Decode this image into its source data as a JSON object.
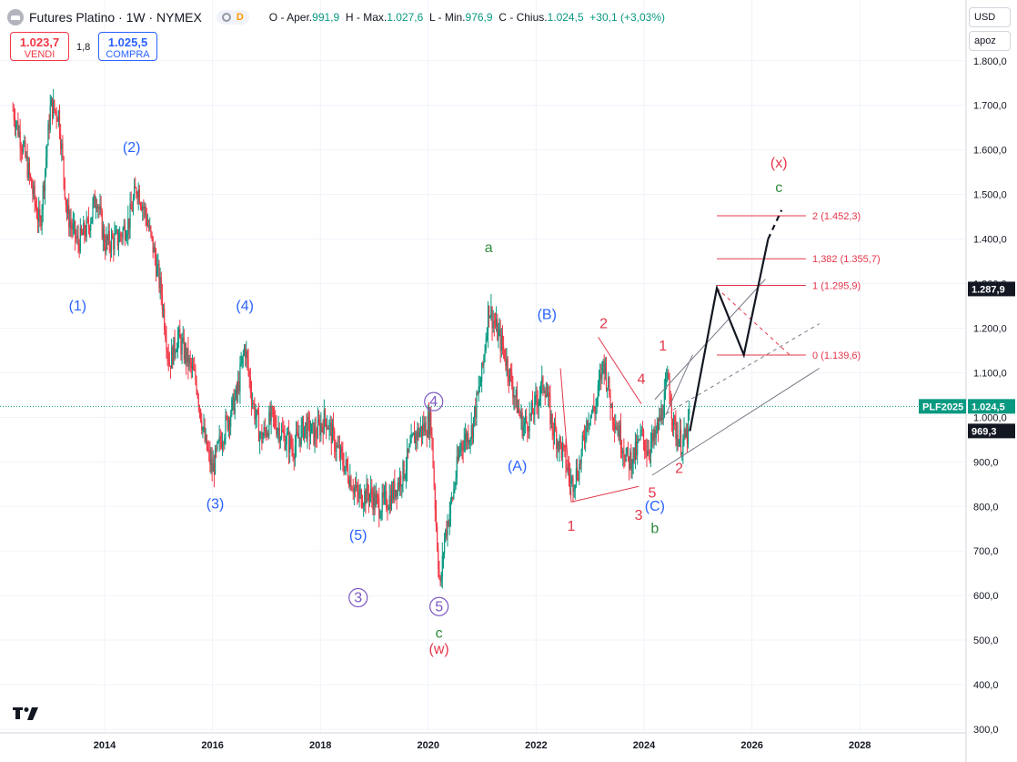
{
  "header": {
    "symbol": "Futures Platino · 1W · NYMEX",
    "pill_d": "D",
    "o_label": "O -",
    "o_key": "Aper.",
    "o_val": "991,9",
    "h_label": "H -",
    "h_key": "Max.",
    "h_val": "1.027,6",
    "l_label": "L -",
    "l_key": "Min.",
    "l_val": "976,9",
    "c_label": "C -",
    "c_key": "Chius.",
    "c_val": "1.024,5",
    "change": "+30,1 (+3,03%)"
  },
  "trade": {
    "sell_price": "1.023,7",
    "sell_label": "VENDI",
    "spread": "1,8",
    "buy_price": "1.025,5",
    "buy_label": "COMPRA"
  },
  "toolbar": {
    "currency": "USD",
    "scale_mode": "apoz"
  },
  "colors": {
    "up": "#089981",
    "down": "#f23645",
    "blue": "#2962ff",
    "green": "#2e8b3a",
    "purple": "#7e57c2",
    "red": "#e5364a",
    "grid": "#f0f3fa"
  },
  "chart_data": {
    "type": "candlestick",
    "symbol": "PLF2025",
    "timeframe": "1W",
    "x_range": [
      2012.3,
      2029.1
    ],
    "y_range": [
      300,
      1850
    ],
    "x_ticks": [
      "2014",
      "2016",
      "2018",
      "2020",
      "2022",
      "2024",
      "2026",
      "2028"
    ],
    "y_ticks": [
      "300,0",
      "400,0",
      "500,0",
      "600,0",
      "700,0",
      "800,0",
      "900,0",
      "1.000,0",
      "1.100,0",
      "1.200,0",
      "1.300,0",
      "1.400,0",
      "1.500,0",
      "1.600,0",
      "1.700,0",
      "1.800,0"
    ],
    "price_path": [
      [
        2012.3,
        1690
      ],
      [
        2012.5,
        1600
      ],
      [
        2012.8,
        1430
      ],
      [
        2013.0,
        1700
      ],
      [
        2013.15,
        1680
      ],
      [
        2013.3,
        1460
      ],
      [
        2013.5,
        1390
      ],
      [
        2013.7,
        1430
      ],
      [
        2013.85,
        1500
      ],
      [
        2014.0,
        1390
      ],
      [
        2014.25,
        1400
      ],
      [
        2014.45,
        1440
      ],
      [
        2014.6,
        1520
      ],
      [
        2014.75,
        1460
      ],
      [
        2014.9,
        1380
      ],
      [
        2015.05,
        1280
      ],
      [
        2015.2,
        1120
      ],
      [
        2015.35,
        1180
      ],
      [
        2015.5,
        1140
      ],
      [
        2015.7,
        1080
      ],
      [
        2015.85,
        950
      ],
      [
        2016.0,
        880
      ],
      [
        2016.15,
        950
      ],
      [
        2016.3,
        1000
      ],
      [
        2016.45,
        1050
      ],
      [
        2016.6,
        1160
      ],
      [
        2016.75,
        1030
      ],
      [
        2016.9,
        950
      ],
      [
        2017.1,
        1000
      ],
      [
        2017.3,
        960
      ],
      [
        2017.5,
        930
      ],
      [
        2017.7,
        980
      ],
      [
        2017.9,
        960
      ],
      [
        2018.1,
        1000
      ],
      [
        2018.3,
        930
      ],
      [
        2018.5,
        880
      ],
      [
        2018.7,
        820
      ],
      [
        2018.9,
        830
      ],
      [
        2019.1,
        800
      ],
      [
        2019.3,
        820
      ],
      [
        2019.55,
        880
      ],
      [
        2019.75,
        960
      ],
      [
        2019.95,
        980
      ],
      [
        2020.05,
        990
      ],
      [
        2020.15,
        750
      ],
      [
        2020.22,
        610
      ],
      [
        2020.3,
        730
      ],
      [
        2020.45,
        820
      ],
      [
        2020.6,
        940
      ],
      [
        2020.8,
        970
      ],
      [
        2021.0,
        1100
      ],
      [
        2021.12,
        1250
      ],
      [
        2021.25,
        1200
      ],
      [
        2021.4,
        1150
      ],
      [
        2021.6,
        1050
      ],
      [
        2021.75,
        980
      ],
      [
        2021.9,
        1000
      ],
      [
        2022.05,
        1050
      ],
      [
        2022.15,
        1080
      ],
      [
        2022.3,
        980
      ],
      [
        2022.5,
        920
      ],
      [
        2022.65,
        850
      ],
      [
        2022.8,
        890
      ],
      [
        2022.95,
        1000
      ],
      [
        2023.1,
        1020
      ],
      [
        2023.25,
        1130
      ],
      [
        2023.4,
        1020
      ],
      [
        2023.55,
        960
      ],
      [
        2023.7,
        900
      ],
      [
        2023.85,
        920
      ],
      [
        2023.95,
        960
      ],
      [
        2024.05,
        930
      ],
      [
        2024.2,
        950
      ],
      [
        2024.35,
        1020
      ],
      [
        2024.45,
        1090
      ],
      [
        2024.55,
        980
      ],
      [
        2024.7,
        940
      ],
      [
        2024.8,
        960
      ],
      [
        2024.85,
        1020
      ]
    ],
    "last_price": "1.024,5",
    "last_label": "PLF2025",
    "labels_on_axis": [
      "1.287,9",
      "969,3"
    ],
    "fibonacci": [
      {
        "label": "2 (1.452,3)",
        "price": 1452.3
      },
      {
        "label": "1,382 (1.355,7)",
        "price": 1355.7
      },
      {
        "label": "1 (1.295,9)",
        "price": 1295.9
      },
      {
        "label": "0 (1.139,6)",
        "price": 1139.6
      }
    ],
    "wave_labels": [
      {
        "text": "(1)",
        "x": 2013.5,
        "y": 1240,
        "color": "blue"
      },
      {
        "text": "(2)",
        "x": 2014.5,
        "y": 1595,
        "color": "blue"
      },
      {
        "text": "(3)",
        "x": 2016.05,
        "y": 795,
        "color": "blue"
      },
      {
        "text": "(4)",
        "x": 2016.6,
        "y": 1240,
        "color": "blue"
      },
      {
        "text": "(5)",
        "x": 2018.7,
        "y": 725,
        "color": "blue"
      },
      {
        "text": "3",
        "x": 2018.7,
        "y": 585,
        "color": "purple",
        "circled": true
      },
      {
        "text": "4",
        "x": 2020.1,
        "y": 1025,
        "color": "purple",
        "circled": true
      },
      {
        "text": "5",
        "x": 2020.2,
        "y": 565,
        "color": "purple",
        "circled": true
      },
      {
        "text": "c",
        "x": 2020.2,
        "y": 505,
        "color": "green"
      },
      {
        "text": "(w)",
        "x": 2020.2,
        "y": 470,
        "color": "red"
      },
      {
        "text": "a",
        "x": 2021.12,
        "y": 1370,
        "color": "green"
      },
      {
        "text": "(B)",
        "x": 2022.2,
        "y": 1220,
        "color": "blue"
      },
      {
        "text": "(A)",
        "x": 2021.65,
        "y": 880,
        "color": "blue"
      },
      {
        "text": "2",
        "x": 2023.25,
        "y": 1200,
        "color": "red"
      },
      {
        "text": "1",
        "x": 2022.65,
        "y": 745,
        "color": "red"
      },
      {
        "text": "4",
        "x": 2023.95,
        "y": 1075,
        "color": "red"
      },
      {
        "text": "1",
        "x": 2024.35,
        "y": 1150,
        "color": "red"
      },
      {
        "text": "5",
        "x": 2024.15,
        "y": 820,
        "color": "red"
      },
      {
        "text": "3",
        "x": 2023.9,
        "y": 770,
        "color": "red"
      },
      {
        "text": "(C)",
        "x": 2024.2,
        "y": 790,
        "color": "blue"
      },
      {
        "text": "b",
        "x": 2024.2,
        "y": 740,
        "color": "green"
      },
      {
        "text": "2",
        "x": 2024.65,
        "y": 875,
        "color": "red"
      },
      {
        "text": "(x)",
        "x": 2026.5,
        "y": 1560,
        "color": "red"
      },
      {
        "text": "c",
        "x": 2026.5,
        "y": 1505,
        "color": "green"
      }
    ],
    "projection_path": [
      [
        2024.85,
        969
      ],
      [
        2025.35,
        1290
      ],
      [
        2025.85,
        1140
      ],
      [
        2026.3,
        1400
      ]
    ],
    "projection_dashed": [
      [
        2026.3,
        1400
      ],
      [
        2026.55,
        1465
      ]
    ]
  }
}
